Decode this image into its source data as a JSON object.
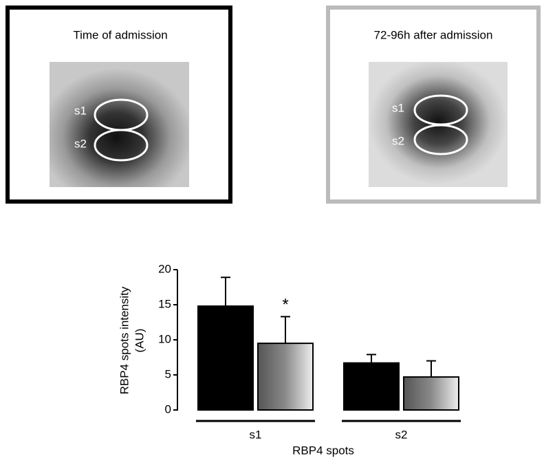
{
  "panels": [
    {
      "title": "Time of admission",
      "spots": [
        "s1",
        "s2"
      ]
    },
    {
      "title": "72-96h after admission",
      "spots": [
        "s1",
        "s2"
      ]
    }
  ],
  "chart_data": {
    "type": "bar",
    "ylabel": [
      "RBP4 spots  intensity",
      "(AU)"
    ],
    "xlabel": "RBP4 spots",
    "categories": [
      "s1",
      "s2"
    ],
    "series": [
      {
        "color": "#000000",
        "values": [
          14.8,
          6.7
        ],
        "errors": [
          4.1,
          1.2
        ]
      },
      {
        "color": "#8a8a8a",
        "values": [
          9.5,
          4.7
        ],
        "errors": [
          3.8,
          2.3
        ]
      }
    ],
    "annotation": "*",
    "ylim": [
      0,
      20
    ],
    "yticks": [
      0,
      5,
      10,
      15,
      20
    ]
  }
}
